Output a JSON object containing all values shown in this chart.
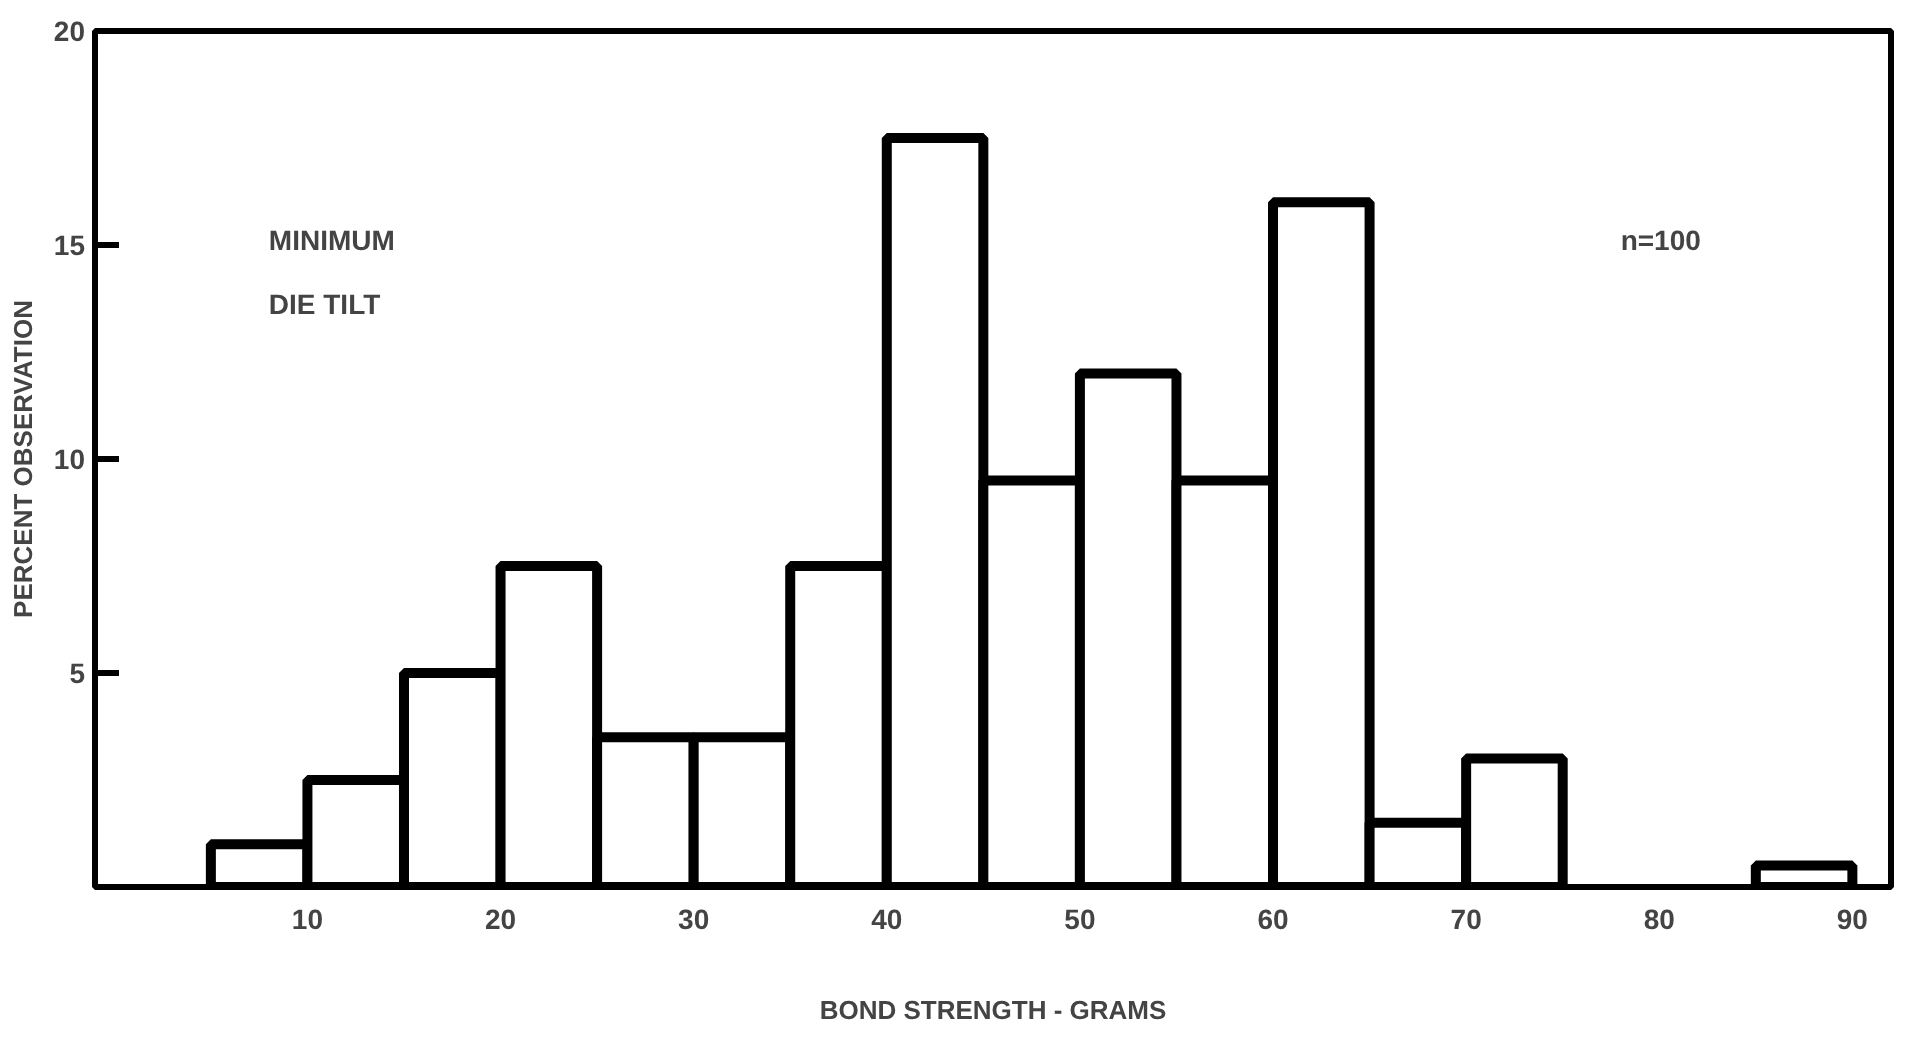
{
  "chart_data": {
    "type": "histogram",
    "xlabel": "BOND STRENGTH - GRAMS",
    "ylabel": "PERCENT OBSERVATION",
    "bins": [
      5,
      10,
      15,
      20,
      25,
      30,
      35,
      40,
      45,
      50,
      55,
      60,
      65,
      70,
      75,
      80,
      85,
      90
    ],
    "values": [
      1,
      2.5,
      5,
      7.5,
      3.5,
      3.5,
      7.5,
      17.5,
      9.5,
      12,
      9.5,
      16,
      1.5,
      3,
      0,
      0,
      0.5
    ],
    "color": "#ffffff",
    "xlim": [
      -1,
      92
    ],
    "xticks": [
      10,
      20,
      30,
      40,
      50,
      60,
      70,
      80,
      90
    ],
    "ylim": [
      0,
      20
    ],
    "yticks": [
      {
        "value": 0,
        "label": null
      },
      5,
      10,
      15,
      20
    ],
    "annotations": [
      "MINIMUM\nDIE TILT",
      "n=100"
    ],
    "grid": false
  }
}
